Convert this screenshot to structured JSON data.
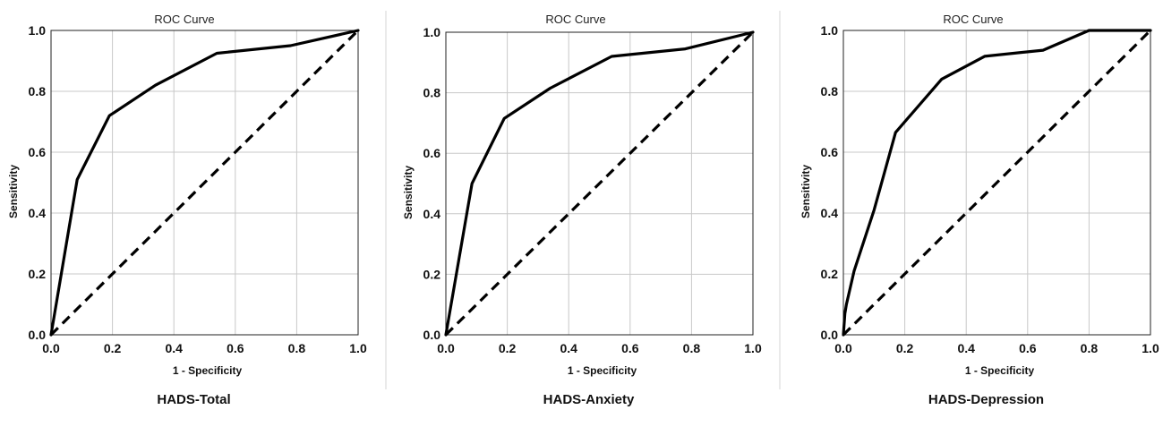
{
  "chart_data": [
    {
      "type": "line",
      "title": "ROC Curve",
      "xlabel": "1 - Specificity",
      "ylabel": "Sensitivity",
      "caption": "HADS-Total",
      "xlim": [
        0,
        1
      ],
      "ylim": [
        0,
        1
      ],
      "xticks": [
        "0.0",
        "0.2",
        "0.4",
        "0.6",
        "0.8",
        "1.0"
      ],
      "yticks": [
        "0.0",
        "0.2",
        "0.4",
        "0.6",
        "0.8",
        "1.0"
      ],
      "grid": true,
      "series": [
        {
          "x": [
            0.0,
            0.085,
            0.19,
            0.34,
            0.54,
            0.78,
            1.0
          ],
          "y": [
            0.0,
            0.51,
            0.72,
            0.82,
            0.925,
            0.95,
            1.0
          ],
          "style": "solid"
        },
        {
          "x": [
            0.0,
            1.0
          ],
          "y": [
            0.0,
            1.0
          ],
          "style": "dashed"
        }
      ]
    },
    {
      "type": "line",
      "title": "ROC Curve",
      "xlabel": "1 - Specificity",
      "ylabel": "Sensitivity",
      "caption": "HADS-Anxiety",
      "xlim": [
        0,
        1
      ],
      "ylim": [
        0,
        1
      ],
      "xticks": [
        "0.0",
        "0.2",
        "0.4",
        "0.6",
        "0.8",
        "1.0"
      ],
      "yticks": [
        "0.0",
        "0.2",
        "0.4",
        "0.6",
        "0.8",
        "1.0"
      ],
      "grid": true,
      "series": [
        {
          "x": [
            0.0,
            0.085,
            0.19,
            0.34,
            0.54,
            0.78,
            1.0
          ],
          "y": [
            0.0,
            0.5,
            0.715,
            0.815,
            0.92,
            0.945,
            1.0
          ],
          "style": "solid"
        },
        {
          "x": [
            0.0,
            1.0
          ],
          "y": [
            0.0,
            1.0
          ],
          "style": "dashed"
        }
      ]
    },
    {
      "type": "line",
      "title": "ROC Curve",
      "xlabel": "1 - Specificity",
      "ylabel": "Sensitivity",
      "caption": "HADS-Depression",
      "xlim": [
        0,
        1
      ],
      "ylim": [
        0,
        1
      ],
      "xticks": [
        "0.0",
        "0.2",
        "0.4",
        "0.6",
        "0.8",
        "1.0"
      ],
      "yticks": [
        "0.0",
        "0.2",
        "0.4",
        "0.6",
        "0.8",
        "1.0"
      ],
      "grid": true,
      "series": [
        {
          "x": [
            0.0,
            0.005,
            0.01,
            0.035,
            0.1,
            0.17,
            0.32,
            0.46,
            0.65,
            0.8,
            1.0
          ],
          "y": [
            0.0,
            0.07,
            0.1,
            0.21,
            0.41,
            0.665,
            0.84,
            0.915,
            0.935,
            1.0,
            1.0
          ],
          "style": "solid"
        },
        {
          "x": [
            0.0,
            1.0
          ],
          "y": [
            0.0,
            1.0
          ],
          "style": "dashed"
        }
      ]
    }
  ]
}
